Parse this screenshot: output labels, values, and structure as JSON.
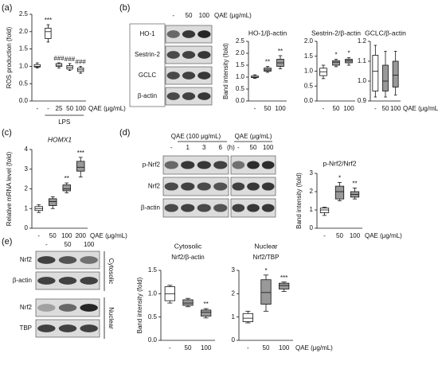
{
  "chart_data": [
    {
      "type": "box",
      "ylabel": "ROS production (fold)",
      "categories": [
        "-",
        "-",
        "25",
        "50",
        "100"
      ],
      "group_label": "LPS",
      "xlabel": "QAE (μg/mL)",
      "ylim": [
        0,
        2.5
      ],
      "yticks": [
        {
          "value": 0,
          "label": "0.0"
        },
        {
          "value": 0.5,
          "label": "0.5"
        },
        {
          "value": 1,
          "label": "1.0"
        },
        {
          "value": 1.5,
          "label": "1.5"
        },
        {
          "value": 2,
          "label": "2.0"
        },
        {
          "value": 2.5,
          "label": "2.5"
        }
      ],
      "boxes": [
        {
          "min": 0.95,
          "q1": 0.98,
          "median": 1.0,
          "q3": 1.05,
          "max": 1.1,
          "color": "#ffffff"
        },
        {
          "min": 1.7,
          "q1": 1.8,
          "median": 2.0,
          "q3": 2.1,
          "max": 2.2,
          "color": "#ffffff"
        },
        {
          "min": 0.95,
          "q1": 1.0,
          "median": 1.03,
          "q3": 1.08,
          "max": 1.1,
          "color": "#ffffff"
        },
        {
          "min": 0.88,
          "q1": 0.92,
          "median": 0.97,
          "q3": 1.02,
          "max": 1.08,
          "color": "#ffffff"
        },
        {
          "min": 0.8,
          "q1": 0.85,
          "median": 0.9,
          "q3": 0.95,
          "max": 1.0,
          "color": "#ffffff"
        }
      ],
      "box_labels": [
        null,
        "***",
        "###",
        "###",
        "###"
      ]
    },
    {
      "type": "box",
      "title": "HO-1/β-actin",
      "ylabel": "Band intensity (fold)",
      "categories": [
        "-",
        "50",
        "100"
      ],
      "ylim": [
        0,
        2.5
      ],
      "yticks": [
        {
          "value": 0,
          "label": "0.0"
        },
        {
          "value": 0.5,
          "label": "0.5"
        },
        {
          "value": 1,
          "label": "1.0"
        },
        {
          "value": 1.5,
          "label": "1.5"
        },
        {
          "value": 2,
          "label": "2.0"
        },
        {
          "value": 2.5,
          "label": "2.5"
        }
      ],
      "boxes": [
        {
          "min": 0.95,
          "q1": 0.98,
          "median": 1.0,
          "q3": 1.05,
          "max": 1.1,
          "color": "#ffffff"
        },
        {
          "min": 1.2,
          "q1": 1.25,
          "median": 1.3,
          "q3": 1.38,
          "max": 1.45,
          "color": "#999999"
        },
        {
          "min": 1.35,
          "q1": 1.45,
          "median": 1.6,
          "q3": 1.75,
          "max": 1.9,
          "color": "#999999"
        }
      ],
      "box_labels": [
        null,
        "**",
        "**"
      ]
    },
    {
      "type": "box",
      "title": "Sestrin-2/β-actin",
      "categories": [
        "-",
        "50",
        "100"
      ],
      "ylim": [
        0,
        2
      ],
      "yticks": [
        {
          "value": 0,
          "label": "0.0"
        },
        {
          "value": 0.5,
          "label": "0.5"
        },
        {
          "value": 1,
          "label": "1.0"
        },
        {
          "value": 1.5,
          "label": "1.5"
        },
        {
          "value": 2,
          "label": "2.0"
        }
      ],
      "boxes": [
        {
          "min": 0.75,
          "q1": 0.85,
          "median": 0.98,
          "q3": 1.1,
          "max": 1.2,
          "color": "#ffffff"
        },
        {
          "min": 1.15,
          "q1": 1.2,
          "median": 1.3,
          "q3": 1.35,
          "max": 1.4,
          "color": "#999999"
        },
        {
          "min": 1.2,
          "q1": 1.28,
          "median": 1.35,
          "q3": 1.4,
          "max": 1.45,
          "color": "#999999"
        }
      ],
      "box_labels": [
        null,
        "*",
        "*"
      ]
    },
    {
      "type": "box",
      "title": "GCLC/β-actin",
      "categories": [
        "-",
        "50",
        "100"
      ],
      "xlabel": "QAE (μg/mL)",
      "ylim": [
        0.9,
        1.2
      ],
      "yticks": [
        0.9,
        {
          "value": 1,
          "label": "1.0"
        },
        1.1,
        1.2
      ],
      "boxes": [
        {
          "min": 0.92,
          "q1": 0.95,
          "median": 1.05,
          "q3": 1.13,
          "max": 1.18,
          "color": "#ffffff"
        },
        {
          "min": 0.92,
          "q1": 0.95,
          "median": 1.0,
          "q3": 1.08,
          "max": 1.15,
          "color": "#999999"
        },
        {
          "min": 0.93,
          "q1": 0.97,
          "median": 1.03,
          "q3": 1.1,
          "max": 1.15,
          "color": "#999999"
        }
      ],
      "box_labels": [
        null,
        null,
        null
      ]
    },
    {
      "type": "box",
      "title": "HOMX1",
      "ylabel": "Relative mRNA level (fold)",
      "categories": [
        "-",
        "50",
        "100",
        "200"
      ],
      "xlabel": "QAE (μg/mL)",
      "ylim": [
        0,
        4
      ],
      "yticks": [
        0,
        1,
        2,
        3,
        4
      ],
      "boxes": [
        {
          "min": 0.8,
          "q1": 0.9,
          "median": 1.0,
          "q3": 1.1,
          "max": 1.2,
          "color": "#ffffff"
        },
        {
          "min": 1.0,
          "q1": 1.15,
          "median": 1.35,
          "q3": 1.5,
          "max": 1.6,
          "color": "#999999"
        },
        {
          "min": 1.8,
          "q1": 1.9,
          "median": 2.0,
          "q3": 2.2,
          "max": 2.3,
          "color": "#999999"
        },
        {
          "min": 2.6,
          "q1": 2.9,
          "median": 3.1,
          "q3": 3.4,
          "max": 3.6,
          "color": "#999999"
        }
      ],
      "box_labels": [
        null,
        null,
        "**",
        "***"
      ]
    },
    {
      "type": "box",
      "title": "p-Nrf2/Nrf2",
      "ylabel": "Band intensity (fold)",
      "categories": [
        "-",
        "50",
        "100"
      ],
      "xlabel": "QAE (μg/mL)",
      "ylim": [
        0,
        3
      ],
      "yticks": [
        0,
        1,
        2,
        3
      ],
      "boxes": [
        {
          "min": 0.7,
          "q1": 0.85,
          "median": 1.0,
          "q3": 1.1,
          "max": 1.15,
          "color": "#ffffff"
        },
        {
          "min": 1.5,
          "q1": 1.6,
          "median": 2.0,
          "q3": 2.3,
          "max": 2.5,
          "color": "#999999"
        },
        {
          "min": 1.6,
          "q1": 1.7,
          "median": 1.85,
          "q3": 2.0,
          "max": 2.2,
          "color": "#999999"
        }
      ],
      "box_labels": [
        null,
        "*",
        "**"
      ]
    },
    {
      "type": "box",
      "title": "Cytosolic",
      "subtitle": "Nrf2/β-actin",
      "ylabel": "Band intensity (fold)",
      "categories": [
        "-",
        "50",
        "100"
      ],
      "ylim": [
        0,
        1.5
      ],
      "yticks": [
        {
          "value": 0,
          "label": "0.0"
        },
        {
          "value": 0.5,
          "label": "0.5"
        },
        {
          "value": 1,
          "label": "1.0"
        },
        {
          "value": 1.5,
          "label": "1.5"
        }
      ],
      "boxes": [
        {
          "min": 0.8,
          "q1": 0.85,
          "median": 1.0,
          "q3": 1.15,
          "max": 1.18,
          "color": "#ffffff"
        },
        {
          "min": 0.72,
          "q1": 0.75,
          "median": 0.8,
          "q3": 0.87,
          "max": 0.9,
          "color": "#999999"
        },
        {
          "min": 0.48,
          "q1": 0.52,
          "median": 0.6,
          "q3": 0.65,
          "max": 0.68,
          "color": "#999999"
        }
      ],
      "box_labels": [
        null,
        null,
        "**"
      ]
    },
    {
      "type": "box",
      "title": "Nuclear",
      "subtitle": "Nrf2/TBP",
      "categories": [
        "-",
        "50",
        "100"
      ],
      "xlabel": "QAE (μg/mL)",
      "ylim": [
        0,
        3
      ],
      "yticks": [
        0,
        1,
        2,
        3
      ],
      "boxes": [
        {
          "min": 0.75,
          "q1": 0.8,
          "median": 0.95,
          "q3": 1.15,
          "max": 1.25,
          "color": "#ffffff"
        },
        {
          "min": 1.25,
          "q1": 1.55,
          "median": 2.05,
          "q3": 2.6,
          "max": 2.8,
          "color": "#999999"
        },
        {
          "min": 2.1,
          "q1": 2.2,
          "median": 2.35,
          "q3": 2.45,
          "max": 2.5,
          "color": "#999999"
        }
      ],
      "box_labels": [
        null,
        "*",
        "***"
      ]
    }
  ],
  "panels": {
    "letters": [
      "(a)",
      "(b)",
      "(c)",
      "(d)",
      "(e)"
    ],
    "blot_b": {
      "lanes": [
        "-",
        "50",
        "100"
      ],
      "unit": "QAE (μg/mL)",
      "rows": [
        "HO-1",
        "Sestrin-2",
        "GCLC",
        "β-actin"
      ]
    },
    "blot_d": {
      "left": {
        "unit": "QAE (100 μg/mL)",
        "lanes": [
          "-",
          "1",
          "3",
          "6"
        ],
        "time_unit": "(h)"
      },
      "right": {
        "unit": "QAE (μg/mL)",
        "lanes": [
          "-",
          "50",
          "100"
        ]
      },
      "rows": [
        "p-Nrf2",
        "Nrf2",
        "β-actin"
      ]
    },
    "blot_e": {
      "lanes": [
        "-",
        "50",
        "100"
      ],
      "rows": [
        "Nrf2",
        "β-actin",
        "Nrf2",
        "TBP"
      ],
      "fractions": [
        "Cytosolic",
        "Nuclear"
      ]
    }
  }
}
